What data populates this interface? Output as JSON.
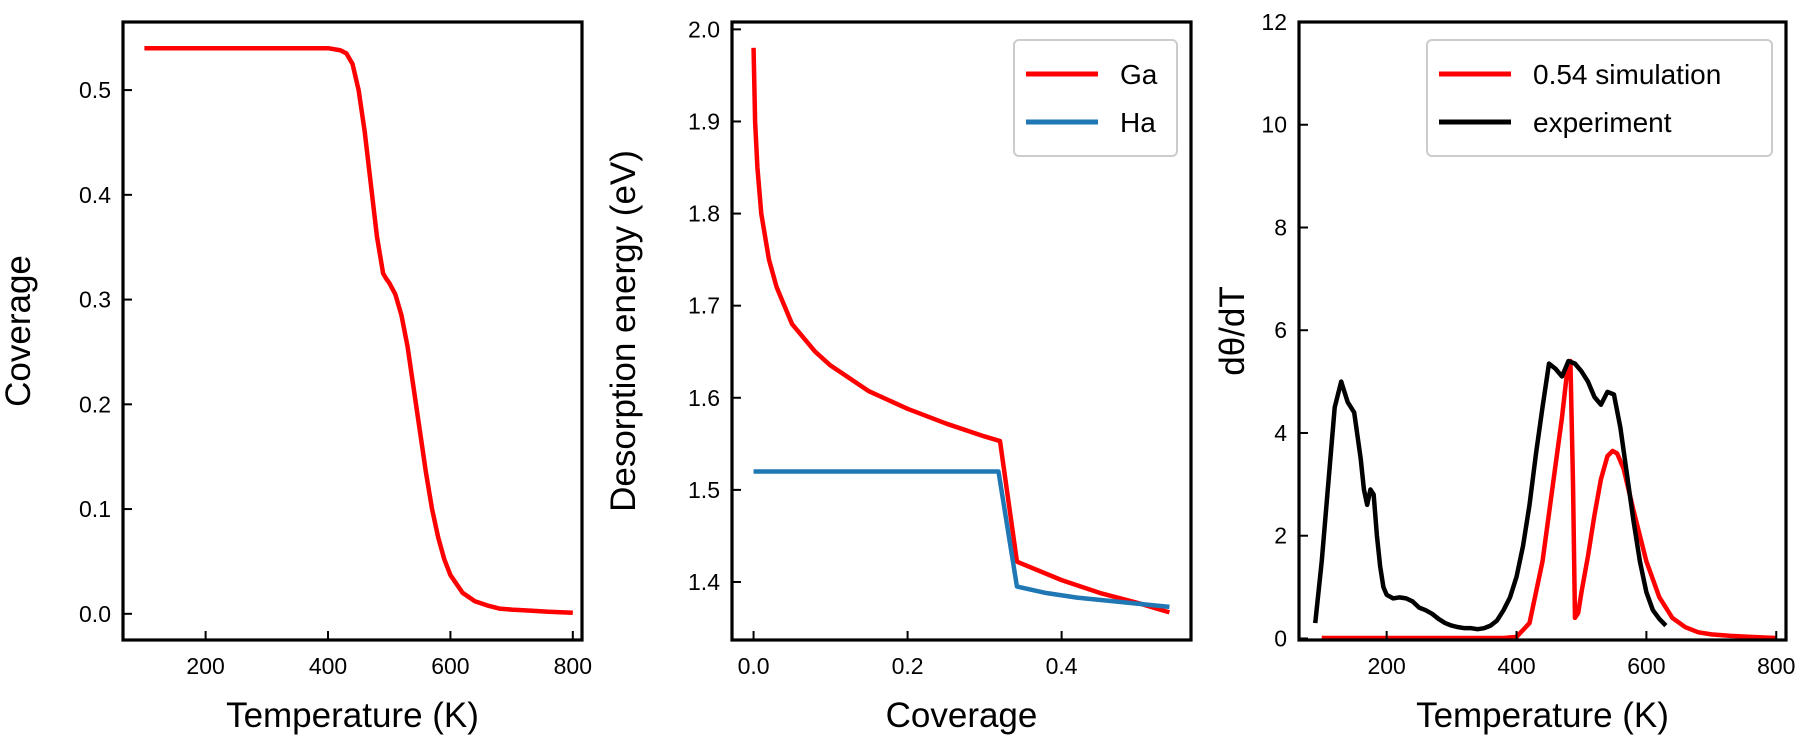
{
  "chart_data": [
    {
      "type": "line",
      "xlabel": "Temperature (K)",
      "ylabel": "Coverage",
      "xlim": [
        65,
        815
      ],
      "ylim": [
        -0.025,
        0.565
      ],
      "xticks": [
        200,
        400,
        600,
        800
      ],
      "yticks": [
        0.0,
        0.1,
        0.2,
        0.3,
        0.4,
        0.5
      ],
      "xtick_labels": [
        "200",
        "400",
        "600",
        "800"
      ],
      "ytick_labels": [
        "0.0",
        "0.1",
        "0.2",
        "0.3",
        "0.4",
        "0.5"
      ],
      "grid": false,
      "series": [
        {
          "color": "#ff0000",
          "x": [
            100,
            200,
            300,
            400,
            420,
            430,
            440,
            450,
            460,
            470,
            480,
            490,
            495,
            500,
            510,
            520,
            530,
            540,
            550,
            560,
            570,
            580,
            590,
            600,
            620,
            640,
            660,
            680,
            700,
            730,
            760,
            800
          ],
          "y": [
            0.54,
            0.54,
            0.54,
            0.54,
            0.538,
            0.535,
            0.525,
            0.5,
            0.46,
            0.41,
            0.36,
            0.325,
            0.32,
            0.316,
            0.305,
            0.285,
            0.255,
            0.215,
            0.175,
            0.135,
            0.1,
            0.073,
            0.052,
            0.037,
            0.02,
            0.012,
            0.008,
            0.005,
            0.004,
            0.003,
            0.002,
            0.001
          ]
        }
      ]
    },
    {
      "type": "line",
      "xlabel": "Coverage",
      "ylabel": "Desorption energy (eV)",
      "xlim": [
        -0.028,
        0.568
      ],
      "ylim": [
        1.337,
        2.008
      ],
      "xticks": [
        0.0,
        0.2,
        0.4
      ],
      "yticks": [
        1.4,
        1.5,
        1.6,
        1.7,
        1.8,
        1.9,
        2.0
      ],
      "xtick_labels": [
        "0.0",
        "0.2",
        "0.4"
      ],
      "ytick_labels": [
        "1.4",
        "1.5",
        "1.6",
        "1.7",
        "1.8",
        "1.9",
        "2.0"
      ],
      "grid": false,
      "legend_position": "top-right",
      "series": [
        {
          "name": "Ga",
          "color": "#ff0000",
          "x": [
            0.0,
            0.002,
            0.005,
            0.01,
            0.02,
            0.03,
            0.05,
            0.08,
            0.1,
            0.15,
            0.2,
            0.25,
            0.3,
            0.32,
            0.342,
            0.4,
            0.45,
            0.5,
            0.54
          ],
          "y": [
            1.98,
            1.9,
            1.85,
            1.8,
            1.75,
            1.72,
            1.68,
            1.65,
            1.635,
            1.607,
            1.588,
            1.572,
            1.558,
            1.553,
            1.422,
            1.402,
            1.388,
            1.377,
            1.367
          ]
        },
        {
          "name": "Ha",
          "color": "#1f77b4",
          "x": [
            0.0,
            0.1,
            0.2,
            0.3,
            0.318,
            0.342,
            0.38,
            0.42,
            0.48,
            0.54
          ],
          "y": [
            1.52,
            1.52,
            1.52,
            1.52,
            1.52,
            1.395,
            1.388,
            1.383,
            1.378,
            1.373
          ]
        }
      ]
    },
    {
      "type": "line",
      "xlabel": "Temperature (K)",
      "ylabel": "dθ/dT",
      "xlim": [
        65,
        815
      ],
      "ylim": [
        -0.03,
        12.0
      ],
      "xticks": [
        200,
        400,
        600,
        800
      ],
      "yticks": [
        0,
        2,
        4,
        6,
        8,
        10,
        12
      ],
      "xtick_labels": [
        "200",
        "400",
        "600",
        "800"
      ],
      "ytick_labels": [
        "0",
        "2",
        "4",
        "6",
        "8",
        "10",
        "12"
      ],
      "grid": false,
      "legend_position": "top-right",
      "series": [
        {
          "name": "0.54 simulation",
          "color": "#ff0000",
          "x": [
            100,
            200,
            300,
            380,
            400,
            420,
            440,
            455,
            470,
            478,
            483,
            487,
            490,
            495,
            500,
            510,
            520,
            530,
            540,
            548,
            555,
            565,
            580,
            600,
            620,
            640,
            660,
            680,
            700,
            730,
            760,
            800
          ],
          "y": [
            0.01,
            0.01,
            0.01,
            0.01,
            0.03,
            0.3,
            1.5,
            2.9,
            4.3,
            5.2,
            5.4,
            3.0,
            0.4,
            0.5,
            0.9,
            1.6,
            2.4,
            3.1,
            3.55,
            3.65,
            3.6,
            3.3,
            2.5,
            1.5,
            0.8,
            0.4,
            0.22,
            0.12,
            0.08,
            0.05,
            0.03,
            0.01
          ]
        },
        {
          "name": " experiment",
          "color": "#000000",
          "x": [
            90,
            100,
            110,
            120,
            130,
            140,
            150,
            160,
            165,
            170,
            175,
            180,
            185,
            190,
            195,
            200,
            210,
            220,
            230,
            240,
            250,
            260,
            270,
            280,
            290,
            300,
            310,
            320,
            330,
            340,
            350,
            360,
            370,
            380,
            390,
            400,
            410,
            420,
            430,
            440,
            450,
            460,
            470,
            480,
            490,
            500,
            510,
            520,
            530,
            540,
            550,
            560,
            570,
            580,
            590,
            600,
            610,
            620,
            630
          ],
          "y": [
            0.3,
            1.5,
            3.0,
            4.5,
            5.0,
            4.6,
            4.4,
            3.5,
            2.9,
            2.6,
            2.9,
            2.8,
            2.0,
            1.4,
            1.0,
            0.85,
            0.78,
            0.8,
            0.78,
            0.72,
            0.6,
            0.55,
            0.48,
            0.38,
            0.3,
            0.25,
            0.22,
            0.2,
            0.2,
            0.18,
            0.2,
            0.25,
            0.35,
            0.55,
            0.8,
            1.2,
            1.8,
            2.6,
            3.6,
            4.5,
            5.35,
            5.25,
            5.1,
            5.4,
            5.35,
            5.2,
            5.0,
            4.7,
            4.55,
            4.8,
            4.75,
            4.1,
            3.2,
            2.3,
            1.5,
            0.9,
            0.55,
            0.38,
            0.25
          ]
        }
      ]
    }
  ]
}
